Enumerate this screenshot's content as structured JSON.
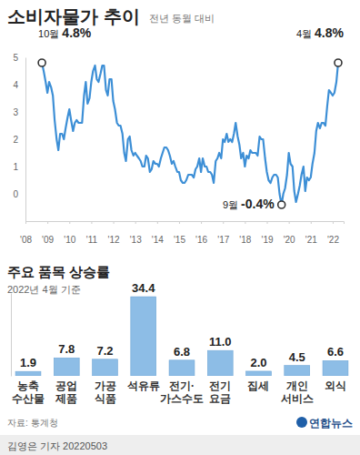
{
  "chart_data": [
    {
      "type": "line",
      "title": "소비자물가 추이",
      "subtitle": "전년 동월 대비",
      "color": "#3d8fd6",
      "x": [
        2008.75,
        2008.83,
        2008.92,
        2009,
        2009.08,
        2009.17,
        2009.25,
        2009.33,
        2009.42,
        2009.5,
        2009.58,
        2009.67,
        2009.75,
        2009.83,
        2009.92,
        2010,
        2010.08,
        2010.17,
        2010.25,
        2010.33,
        2010.42,
        2010.5,
        2010.58,
        2010.67,
        2010.75,
        2010.83,
        2010.92,
        2011,
        2011.08,
        2011.17,
        2011.25,
        2011.33,
        2011.42,
        2011.5,
        2011.58,
        2011.67,
        2011.75,
        2011.83,
        2011.92,
        2012,
        2012.08,
        2012.17,
        2012.25,
        2012.33,
        2012.42,
        2012.5,
        2012.58,
        2012.67,
        2012.75,
        2012.83,
        2012.92,
        2013,
        2013.08,
        2013.17,
        2013.25,
        2013.33,
        2013.42,
        2013.5,
        2013.58,
        2013.67,
        2013.75,
        2013.83,
        2013.92,
        2014,
        2014.08,
        2014.17,
        2014.25,
        2014.33,
        2014.42,
        2014.5,
        2014.58,
        2014.67,
        2014.75,
        2014.83,
        2014.92,
        2015,
        2015.08,
        2015.17,
        2015.25,
        2015.33,
        2015.42,
        2015.5,
        2015.58,
        2015.67,
        2015.75,
        2015.83,
        2015.92,
        2016,
        2016.08,
        2016.17,
        2016.25,
        2016.33,
        2016.42,
        2016.5,
        2016.58,
        2016.67,
        2016.75,
        2016.83,
        2016.92,
        2017,
        2017.08,
        2017.17,
        2017.25,
        2017.33,
        2017.42,
        2017.5,
        2017.58,
        2017.67,
        2017.75,
        2017.83,
        2017.92,
        2018,
        2018.08,
        2018.17,
        2018.25,
        2018.33,
        2018.42,
        2018.5,
        2018.58,
        2018.67,
        2018.75,
        2018.83,
        2018.92,
        2019,
        2019.08,
        2019.17,
        2019.25,
        2019.33,
        2019.42,
        2019.5,
        2019.58,
        2019.67,
        2019.75,
        2019.83,
        2019.92,
        2020,
        2020.08,
        2020.17,
        2020.25,
        2020.33,
        2020.42,
        2020.5,
        2020.58,
        2020.67,
        2020.75,
        2020.83,
        2020.92,
        2021,
        2021.08,
        2021.17,
        2021.25,
        2021.33,
        2021.42,
        2021.5,
        2021.58,
        2021.67,
        2021.75,
        2021.83,
        2021.92,
        2022,
        2022.08,
        2022.17,
        2022.25
      ],
      "values": [
        4.8,
        4.5,
        4.1,
        3.7,
        4.1,
        3.9,
        3.6,
        2.7,
        2.0,
        1.6,
        2.2,
        2.2,
        2.0,
        2.4,
        2.8,
        3.1,
        2.7,
        2.3,
        2.6,
        2.7,
        2.6,
        2.6,
        2.6,
        3.6,
        4.1,
        3.3,
        3.5,
        4.1,
        4.5,
        4.7,
        4.2,
        4.1,
        4.4,
        4.7,
        4.7,
        3.8,
        3.6,
        4.2,
        4.2,
        3.4,
        3.1,
        2.6,
        2.5,
        2.5,
        2.2,
        1.5,
        1.2,
        2.0,
        2.1,
        1.6,
        1.4,
        1.5,
        1.4,
        1.3,
        1.2,
        1.0,
        1.0,
        1.4,
        1.3,
        0.8,
        0.9,
        1.2,
        1.1,
        1.1,
        1.0,
        1.3,
        1.5,
        1.7,
        1.7,
        1.6,
        1.4,
        1.1,
        1.2,
        1.0,
        0.8,
        0.8,
        0.5,
        0.4,
        0.4,
        0.5,
        0.7,
        0.7,
        0.7,
        0.6,
        0.9,
        1.0,
        1.3,
        0.8,
        1.3,
        1.0,
        1.0,
        0.8,
        0.8,
        0.7,
        0.4,
        1.2,
        1.3,
        1.5,
        1.3,
        2.0,
        1.9,
        2.2,
        1.9,
        2.0,
        1.9,
        2.2,
        2.6,
        2.1,
        1.8,
        1.3,
        1.5,
        1.0,
        1.4,
        1.3,
        1.6,
        1.5,
        1.5,
        1.5,
        1.4,
        2.1,
        2.0,
        2.0,
        1.3,
        0.8,
        0.5,
        0.4,
        0.6,
        0.7,
        0.7,
        0.6,
        0.0,
        -0.4,
        0.0,
        0.2,
        0.7,
        1.5,
        1.1,
        1.0,
        0.1,
        -0.3,
        0.0,
        0.3,
        0.7,
        1.0,
        0.1,
        0.6,
        0.5,
        0.6,
        1.1,
        1.5,
        2.3,
        2.6,
        2.4,
        2.6,
        2.6,
        2.5,
        3.2,
        3.8,
        3.7,
        3.6,
        3.7,
        4.1,
        4.8
      ],
      "xlim": [
        2008,
        2022.5
      ],
      "xticks": [
        {
          "value": 2008,
          "label": "'08"
        },
        {
          "value": 2009,
          "label": "'09"
        },
        {
          "value": 2010,
          "label": "'10"
        },
        {
          "value": 2011,
          "label": "'11"
        },
        {
          "value": 2012,
          "label": "'12"
        },
        {
          "value": 2013,
          "label": "'13"
        },
        {
          "value": 2014,
          "label": "'14"
        },
        {
          "value": 2015,
          "label": "'15"
        },
        {
          "value": 2016,
          "label": "'16"
        },
        {
          "value": 2017,
          "label": "'17"
        },
        {
          "value": 2018,
          "label": "'18"
        },
        {
          "value": 2019,
          "label": "'19"
        },
        {
          "value": 2020,
          "label": "'20"
        },
        {
          "value": 2021,
          "label": "'21"
        },
        {
          "value": 2022,
          "label": "'22"
        }
      ],
      "ylim": [
        -1,
        5
      ],
      "yticks": [
        0,
        1,
        2,
        3,
        4,
        5
      ],
      "annotations": [
        {
          "x": 2008.75,
          "y": 4.8,
          "month": "10월",
          "label": "4.8%"
        },
        {
          "x": 2019.67,
          "y": -0.4,
          "month": "9월",
          "label": "-0.4%"
        },
        {
          "x": 2022.25,
          "y": 4.8,
          "month": "4월",
          "label": "4.8%"
        }
      ]
    },
    {
      "type": "bar",
      "title": "주요 품목 상승률",
      "subtitle": "2022년 4월 기준",
      "color": "#8dbde6",
      "categories": [
        "농축\n수산물",
        "공업\n제품",
        "가공\n식품",
        "석유류",
        "전기·\n가스수도",
        "전기\n요금",
        "집세",
        "개인\n서비스",
        "외식"
      ],
      "values": [
        1.9,
        7.8,
        7.2,
        34.4,
        6.8,
        11.0,
        2.0,
        4.5,
        6.6
      ],
      "value_labels": [
        "1.9",
        "7.8",
        "7.2",
        "34.4",
        "6.8",
        "11.0",
        "2.0",
        "4.5",
        "6.6"
      ],
      "data_labels": true,
      "tick_labels": "x",
      "ylim": [
        0,
        36
      ]
    }
  ],
  "footer": {
    "source": "자료: 통계청",
    "logo": "연합뉴스",
    "credit": "김영은 기자 20220503"
  }
}
